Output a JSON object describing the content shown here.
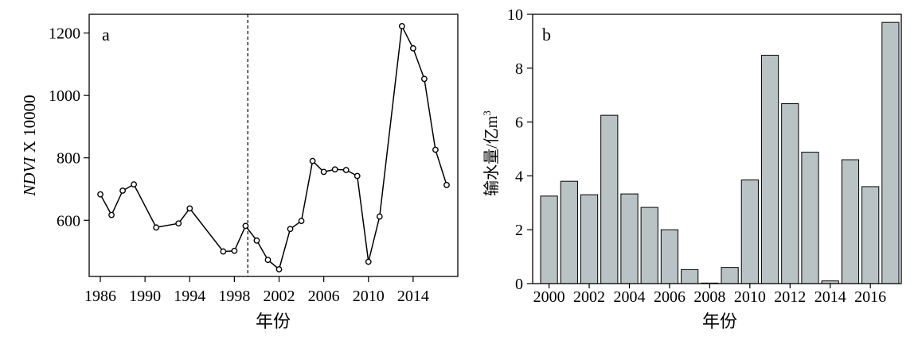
{
  "chart_data": [
    {
      "type": "line",
      "panel_label": "a",
      "xlabel": "年份",
      "ylabel_italic": "NDVI",
      "ylabel_rest": " X 10000",
      "x": [
        1986,
        1987,
        1988,
        1989,
        1991,
        1993,
        1994,
        1997,
        1998,
        1999,
        2000,
        2001,
        2002,
        2003,
        2004,
        2005,
        2006,
        2007,
        2008,
        2009,
        2010,
        2011,
        2013,
        2014,
        2015,
        2016,
        2017
      ],
      "values": [
        683,
        617,
        695,
        715,
        577,
        590,
        638,
        500,
        502,
        582,
        535,
        473,
        443,
        572,
        598,
        790,
        755,
        763,
        761,
        742,
        467,
        612,
        1222,
        1151,
        1053,
        826,
        713
      ],
      "xticks": [
        1986,
        1990,
        1994,
        1998,
        2002,
        2006,
        2010,
        2014
      ],
      "xtick_labels": [
        "1986",
        "1990",
        "1994",
        "1998",
        "2002",
        "2006",
        "2010",
        "2014"
      ],
      "yticks": [
        600,
        800,
        1000,
        1200
      ],
      "ytick_labels": [
        "600",
        "800",
        "1000",
        "1200"
      ],
      "xlim": [
        1985,
        2018
      ],
      "ylim": [
        420,
        1260
      ],
      "vline_x": 1999.2
    },
    {
      "type": "bar",
      "panel_label": "b",
      "xlabel": "年份",
      "ylabel_main": "输水量/亿m",
      "ylabel_sup": "3",
      "categories": [
        "2000",
        "2001",
        "2002",
        "2003",
        "2004",
        "2005",
        "2006",
        "2007",
        "2008",
        "2009",
        "2010",
        "2011",
        "2012",
        "2013",
        "2014",
        "2015",
        "2016",
        "2017"
      ],
      "values": [
        3.25,
        3.8,
        3.3,
        6.25,
        3.33,
        2.83,
        2.0,
        0.52,
        0.02,
        0.6,
        3.85,
        8.48,
        6.68,
        4.88,
        0.1,
        4.6,
        3.6,
        9.7
      ],
      "xtick_labels": [
        "2000",
        "2002",
        "2004",
        "2006",
        "2008",
        "2010",
        "2012",
        "2014",
        "2016"
      ],
      "yticks": [
        0,
        2,
        4,
        6,
        8,
        10
      ],
      "ytick_labels": [
        "0",
        "2",
        "4",
        "6",
        "8",
        "10"
      ],
      "ylim": [
        0,
        10
      ],
      "bar_color": "#b9c3c6"
    }
  ]
}
